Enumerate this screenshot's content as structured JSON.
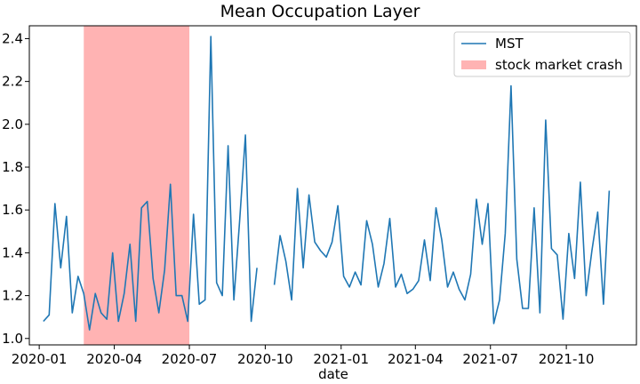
{
  "chart_data": {
    "type": "line",
    "title": "Mean Occupation Layer",
    "xlabel": "date",
    "ylabel": "",
    "xlim": [
      "2019-12-20",
      "2021-12-25"
    ],
    "ylim": [
      0.97,
      2.46
    ],
    "x_ticks": [
      {
        "date": "2020-01-01",
        "label": "2020-01"
      },
      {
        "date": "2020-04-01",
        "label": "2020-04"
      },
      {
        "date": "2020-07-01",
        "label": "2020-07"
      },
      {
        "date": "2020-10-01",
        "label": "2020-10"
      },
      {
        "date": "2021-01-01",
        "label": "2021-01"
      },
      {
        "date": "2021-04-01",
        "label": "2021-04"
      },
      {
        "date": "2021-07-01",
        "label": "2021-07"
      },
      {
        "date": "2021-10-01",
        "label": "2021-10"
      }
    ],
    "y_ticks": [
      1.0,
      1.2,
      1.4,
      1.6,
      1.8,
      2.0,
      2.2,
      2.4
    ],
    "y_tick_labels": [
      "1.0",
      "1.2",
      "1.4",
      "1.6",
      "1.8",
      "2.0",
      "2.2",
      "2.4"
    ],
    "grid": false,
    "legend_position": "top-right",
    "series": [
      {
        "name": "MST",
        "color": "#1f77b4",
        "points": [
          [
            "2020-01-06",
            1.08
          ],
          [
            "2020-01-13",
            1.11
          ],
          [
            "2020-01-20",
            1.63
          ],
          [
            "2020-01-27",
            1.33
          ],
          [
            "2020-02-03",
            1.57
          ],
          [
            "2020-02-10",
            1.12
          ],
          [
            "2020-02-17",
            1.29
          ],
          [
            "2020-02-24",
            1.21
          ],
          [
            "2020-03-02",
            1.04
          ],
          [
            "2020-03-09",
            1.21
          ],
          [
            "2020-03-16",
            1.12
          ],
          [
            "2020-03-23",
            1.09
          ],
          [
            "2020-03-30",
            1.4
          ],
          [
            "2020-04-06",
            1.08
          ],
          [
            "2020-04-13",
            1.21
          ],
          [
            "2020-04-20",
            1.44
          ],
          [
            "2020-04-27",
            1.08
          ],
          [
            "2020-05-04",
            1.61
          ],
          [
            "2020-05-11",
            1.64
          ],
          [
            "2020-05-18",
            1.28
          ],
          [
            "2020-05-25",
            1.12
          ],
          [
            "2020-06-01",
            1.32
          ],
          [
            "2020-06-08",
            1.72
          ],
          [
            "2020-06-15",
            1.2
          ],
          [
            "2020-06-22",
            1.2
          ],
          [
            "2020-06-29",
            1.08
          ],
          [
            "2020-07-06",
            1.58
          ],
          [
            "2020-07-13",
            1.16
          ],
          [
            "2020-07-20",
            1.18
          ],
          [
            "2020-07-27",
            2.41
          ],
          [
            "2020-08-03",
            1.26
          ],
          [
            "2020-08-10",
            1.2
          ],
          [
            "2020-08-17",
            1.9
          ],
          [
            "2020-08-24",
            1.18
          ],
          [
            "2020-08-31",
            1.55
          ],
          [
            "2020-09-07",
            1.95
          ],
          [
            "2020-09-14",
            1.08
          ],
          [
            "2020-09-21",
            1.33
          ],
          null,
          [
            "2020-10-12",
            1.25
          ],
          [
            "2020-10-19",
            1.48
          ],
          [
            "2020-10-26",
            1.36
          ],
          [
            "2020-11-02",
            1.18
          ],
          [
            "2020-11-09",
            1.7
          ],
          [
            "2020-11-16",
            1.33
          ],
          [
            "2020-11-23",
            1.67
          ],
          [
            "2020-11-30",
            1.45
          ],
          [
            "2020-12-07",
            1.41
          ],
          [
            "2020-12-14",
            1.38
          ],
          [
            "2020-12-21",
            1.45
          ],
          [
            "2020-12-28",
            1.62
          ],
          [
            "2021-01-04",
            1.29
          ],
          [
            "2021-01-11",
            1.24
          ],
          [
            "2021-01-18",
            1.31
          ],
          [
            "2021-01-25",
            1.25
          ],
          [
            "2021-02-01",
            1.55
          ],
          [
            "2021-02-08",
            1.44
          ],
          [
            "2021-02-15",
            1.24
          ],
          [
            "2021-02-22",
            1.35
          ],
          [
            "2021-03-01",
            1.56
          ],
          [
            "2021-03-08",
            1.24
          ],
          [
            "2021-03-15",
            1.3
          ],
          [
            "2021-03-22",
            1.21
          ],
          [
            "2021-03-29",
            1.23
          ],
          [
            "2021-04-05",
            1.27
          ],
          [
            "2021-04-12",
            1.46
          ],
          [
            "2021-04-19",
            1.27
          ],
          [
            "2021-04-26",
            1.61
          ],
          [
            "2021-05-03",
            1.46
          ],
          [
            "2021-05-10",
            1.24
          ],
          [
            "2021-05-17",
            1.31
          ],
          [
            "2021-05-24",
            1.23
          ],
          [
            "2021-05-31",
            1.18
          ],
          [
            "2021-06-07",
            1.3
          ],
          [
            "2021-06-14",
            1.65
          ],
          [
            "2021-06-21",
            1.44
          ],
          [
            "2021-06-28",
            1.63
          ],
          [
            "2021-07-05",
            1.07
          ],
          [
            "2021-07-12",
            1.18
          ],
          [
            "2021-07-19",
            1.49
          ],
          [
            "2021-07-26",
            2.18
          ],
          [
            "2021-08-02",
            1.37
          ],
          [
            "2021-08-09",
            1.14
          ],
          [
            "2021-08-16",
            1.14
          ],
          [
            "2021-08-23",
            1.61
          ],
          [
            "2021-08-30",
            1.12
          ],
          [
            "2021-09-06",
            2.02
          ],
          [
            "2021-09-13",
            1.42
          ],
          [
            "2021-09-20",
            1.39
          ],
          [
            "2021-09-27",
            1.09
          ],
          [
            "2021-10-04",
            1.49
          ],
          [
            "2021-10-11",
            1.28
          ],
          [
            "2021-10-18",
            1.73
          ],
          [
            "2021-10-25",
            1.2
          ],
          [
            "2021-11-01",
            1.41
          ],
          [
            "2021-11-08",
            1.59
          ],
          [
            "2021-11-15",
            1.16
          ],
          [
            "2021-11-22",
            1.69
          ]
        ]
      }
    ],
    "shaded_regions": [
      {
        "name": "stock market crash",
        "start": "2020-02-24",
        "end": "2020-07-01",
        "color": "#ffb3b3"
      }
    ]
  }
}
